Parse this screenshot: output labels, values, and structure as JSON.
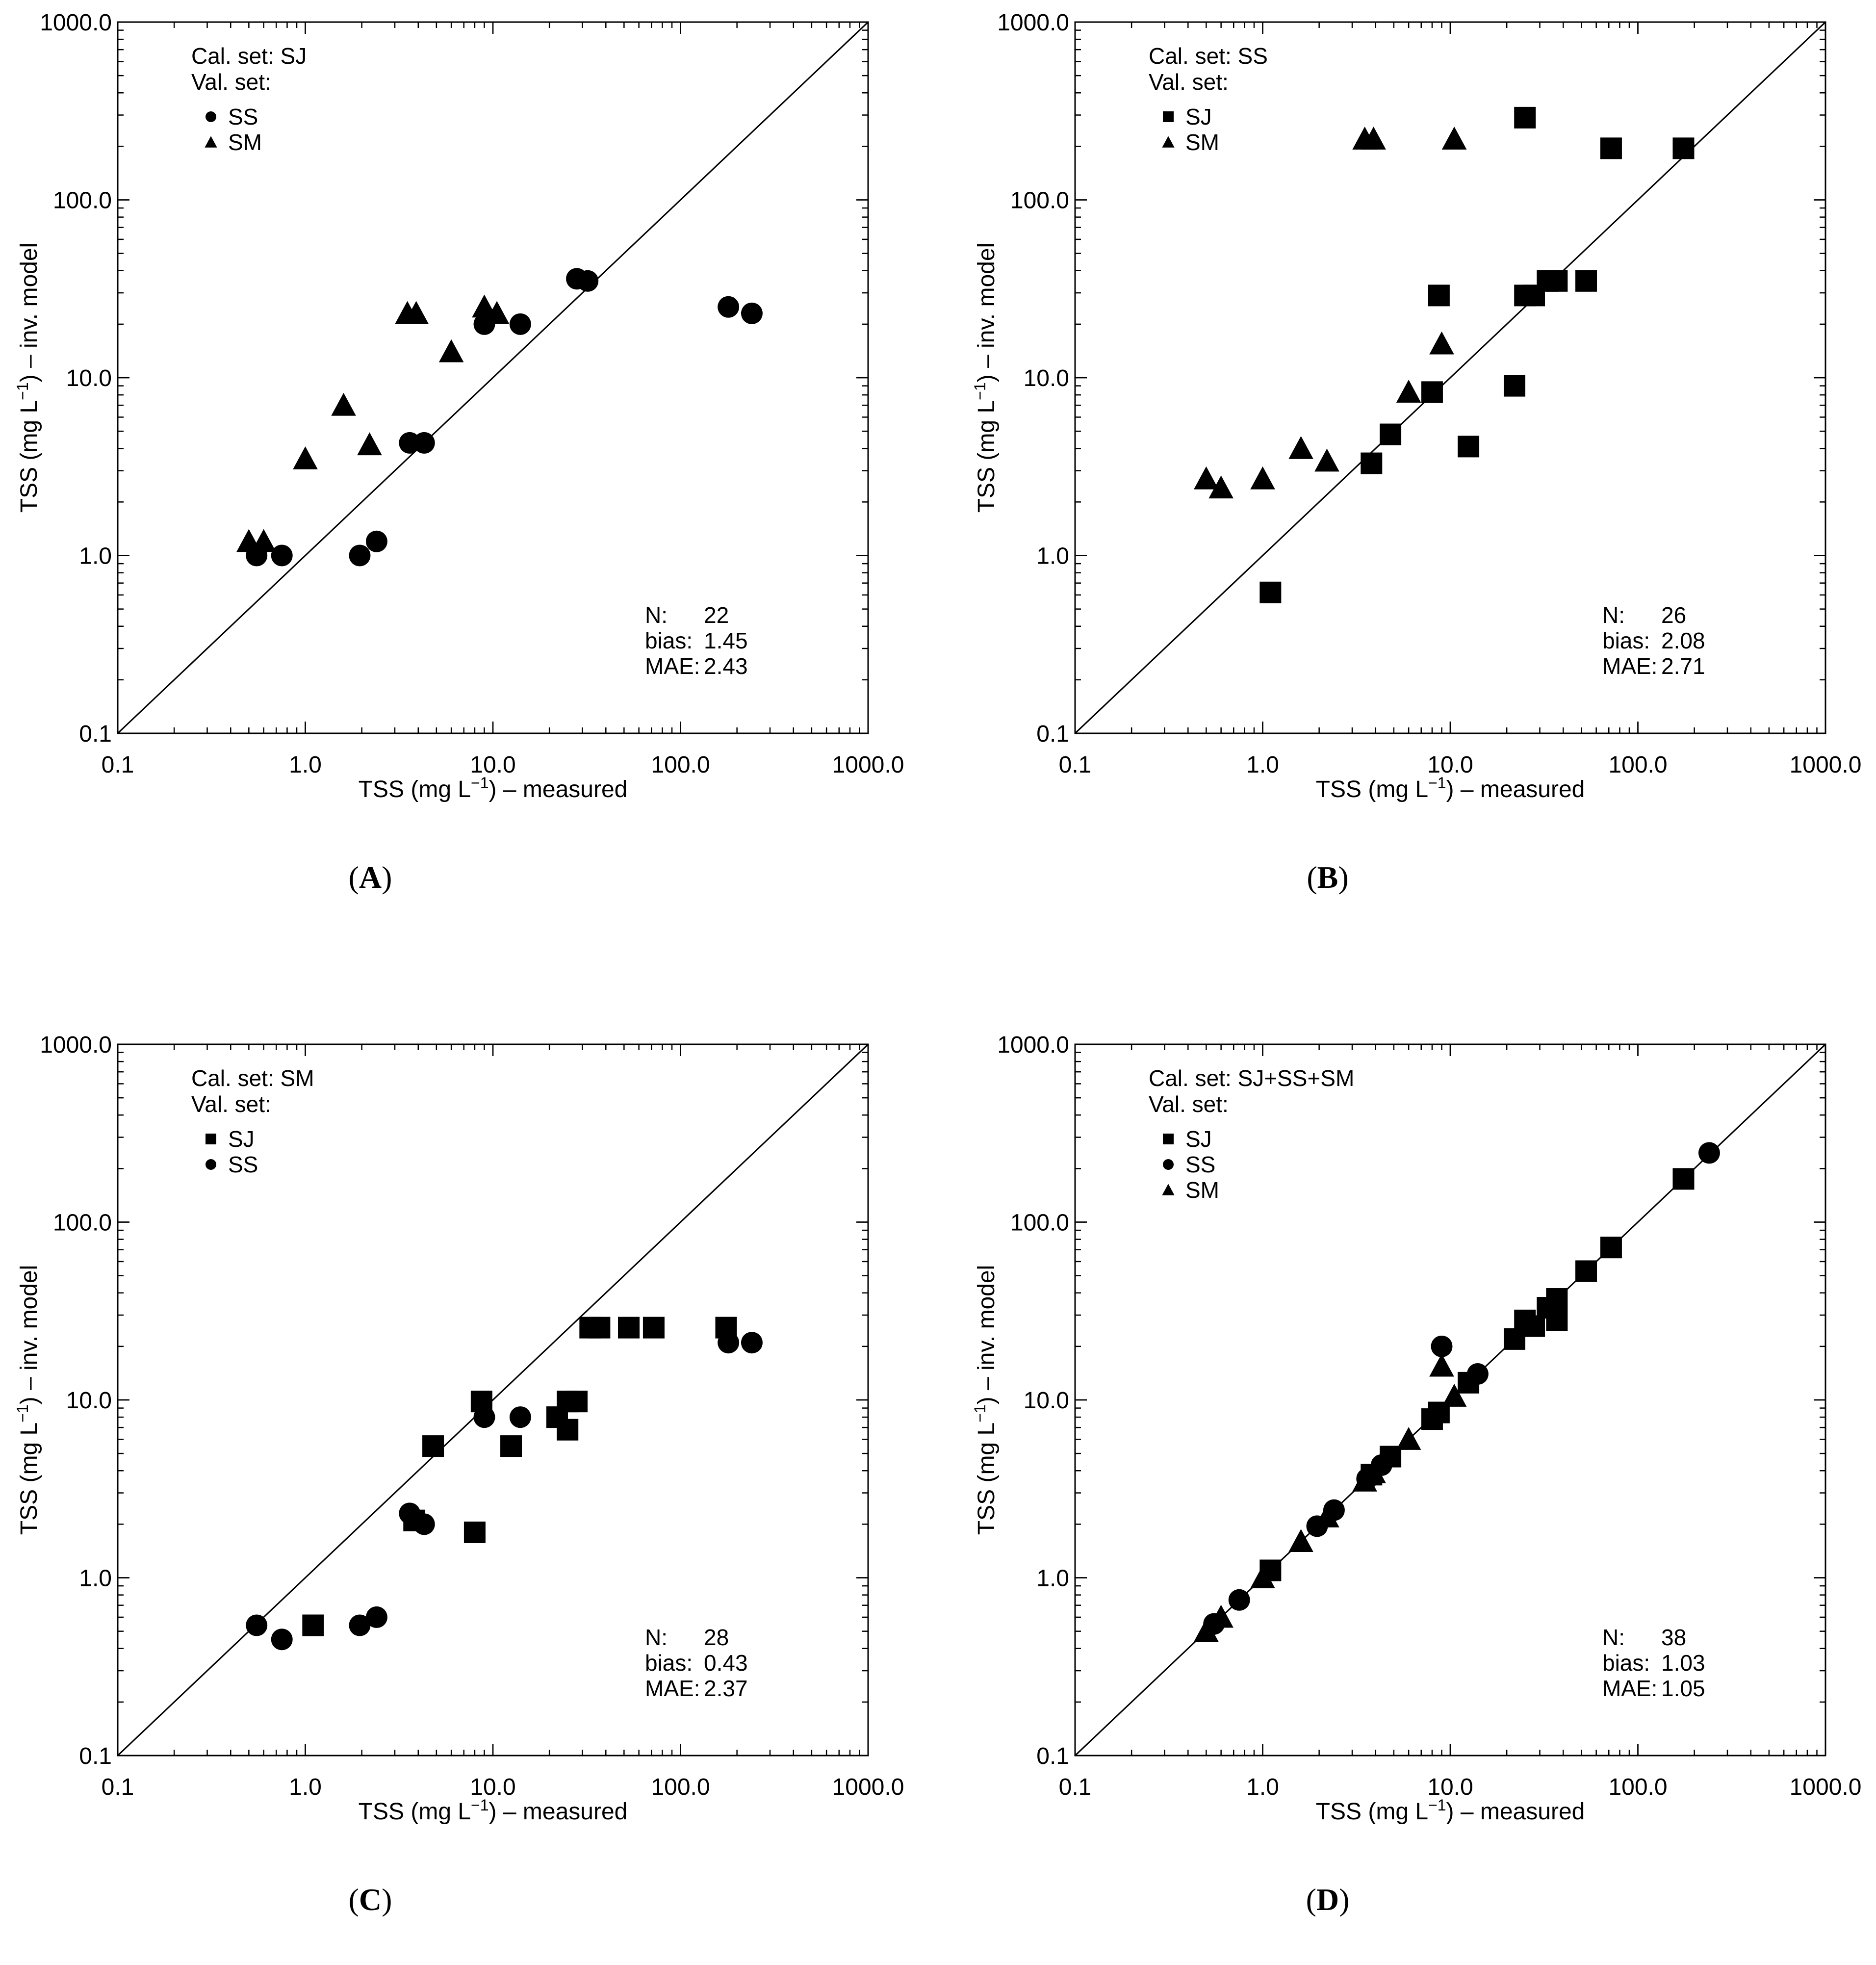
{
  "chart_data": [
    {
      "type": "scatter",
      "panel_label": "A",
      "xscale": "log",
      "yscale": "log",
      "xlim": [
        0.1,
        1000
      ],
      "ylim": [
        0.1,
        1000
      ],
      "x_ticks": [
        "0.1",
        "1.0",
        "10.0",
        "100.0",
        "1000.0"
      ],
      "y_ticks": [
        "0.1",
        "1.0",
        "10.0",
        "100.0",
        "1000.0"
      ],
      "xlabel": {
        "pre": "TSS (mg L",
        "sup": "−1",
        "post": ") – measured"
      },
      "ylabel": {
        "pre": "TSS (mg L",
        "sup": "−1",
        "post": ") – inv. model"
      },
      "reference_line": "1:1",
      "cal_text": "Cal. set: SJ",
      "val_text": "Val. set:",
      "legend": [
        {
          "marker": "circle",
          "label": "SS"
        },
        {
          "marker": "triangle",
          "label": "SM"
        }
      ],
      "series": [
        {
          "name": "SS",
          "marker": "circle",
          "points": [
            [
              0.55,
              1.0
            ],
            [
              0.75,
              1.0
            ],
            [
              1.95,
              1.0
            ],
            [
              2.4,
              1.2
            ],
            [
              3.6,
              4.3
            ],
            [
              4.3,
              4.3
            ],
            [
              9.0,
              20.0
            ],
            [
              14.0,
              20.0
            ],
            [
              28.0,
              36.0
            ],
            [
              32.0,
              35.0
            ],
            [
              180.0,
              25.0
            ],
            [
              240.0,
              23.0
            ]
          ]
        },
        {
          "name": "SM",
          "marker": "triangle",
          "points": [
            [
              0.5,
              1.2
            ],
            [
              0.6,
              1.2
            ],
            [
              1.0,
              3.5
            ],
            [
              1.6,
              7.0
            ],
            [
              2.2,
              4.2
            ],
            [
              3.5,
              23.0
            ],
            [
              3.9,
              23.0
            ],
            [
              6.0,
              14.0
            ],
            [
              9.0,
              25.0
            ],
            [
              10.5,
              23.0
            ]
          ]
        }
      ],
      "stats": {
        "n_label": "N:",
        "n": "22",
        "bias_label": "bias:",
        "bias": "1.45",
        "mae_label": "MAE:",
        "mae": "2.43"
      }
    },
    {
      "type": "scatter",
      "panel_label": "B",
      "xscale": "log",
      "yscale": "log",
      "xlim": [
        0.1,
        1000
      ],
      "ylim": [
        0.1,
        1000
      ],
      "x_ticks": [
        "0.1",
        "1.0",
        "10.0",
        "100.0",
        "1000.0"
      ],
      "y_ticks": [
        "0.1",
        "1.0",
        "10.0",
        "100.0",
        "1000.0"
      ],
      "xlabel": {
        "pre": "TSS (mg L",
        "sup": "−1",
        "post": ") – measured"
      },
      "ylabel": {
        "pre": "TSS (mg L",
        "sup": "−1",
        "post": ") – inv. model"
      },
      "reference_line": "1:1",
      "cal_text": "Cal. set: SS",
      "val_text": "Val. set:",
      "legend": [
        {
          "marker": "square",
          "label": "SJ"
        },
        {
          "marker": "triangle",
          "label": "SM"
        }
      ],
      "series": [
        {
          "name": "SJ",
          "marker": "square",
          "points": [
            [
              1.1,
              0.62
            ],
            [
              3.8,
              3.3
            ],
            [
              4.8,
              4.8
            ],
            [
              8.0,
              8.3
            ],
            [
              8.7,
              29.0
            ],
            [
              12.5,
              4.1
            ],
            [
              22.0,
              9.0
            ],
            [
              25.0,
              290.0
            ],
            [
              25.0,
              29.0
            ],
            [
              28.0,
              29.0
            ],
            [
              33.0,
              35.0
            ],
            [
              37.0,
              35.0
            ],
            [
              53.0,
              35.0
            ],
            [
              72.0,
              195.0
            ],
            [
              175.0,
              195.0
            ]
          ]
        },
        {
          "name": "SM",
          "marker": "triangle",
          "points": [
            [
              0.5,
              2.7
            ],
            [
              0.6,
              2.4
            ],
            [
              1.0,
              2.7
            ],
            [
              1.6,
              4.0
            ],
            [
              2.2,
              3.4
            ],
            [
              3.5,
              220.0
            ],
            [
              3.9,
              220.0
            ],
            [
              6.0,
              8.3
            ],
            [
              9.0,
              15.5
            ],
            [
              10.5,
              220.0
            ]
          ]
        }
      ],
      "stats": {
        "n_label": "N:",
        "n": "26",
        "bias_label": "bias:",
        "bias": "2.08",
        "mae_label": "MAE:",
        "mae": "2.71"
      }
    },
    {
      "type": "scatter",
      "panel_label": "C",
      "xscale": "log",
      "yscale": "log",
      "xlim": [
        0.1,
        1000
      ],
      "ylim": [
        0.1,
        1000
      ],
      "x_ticks": [
        "0.1",
        "1.0",
        "10.0",
        "100.0",
        "1000.0"
      ],
      "y_ticks": [
        "0.1",
        "1.0",
        "10.0",
        "100.0",
        "1000.0"
      ],
      "xlabel": {
        "pre": "TSS (mg L",
        "sup": "−1",
        "post": ") – measured"
      },
      "ylabel": {
        "pre": "TSS (mg L",
        "sup": "−1",
        "post": ") – inv. model"
      },
      "reference_line": "1:1",
      "cal_text": "Cal. set: SM",
      "val_text": "Val. set:",
      "legend": [
        {
          "marker": "square",
          "label": "SJ"
        },
        {
          "marker": "circle",
          "label": "SS"
        }
      ],
      "series": [
        {
          "name": "SJ",
          "marker": "square",
          "points": [
            [
              1.1,
              0.54
            ],
            [
              3.8,
              2.1
            ],
            [
              4.8,
              5.5
            ],
            [
              8.0,
              1.8
            ],
            [
              8.7,
              9.8
            ],
            [
              12.5,
              5.5
            ],
            [
              22.0,
              8.0
            ],
            [
              25.0,
              6.8
            ],
            [
              25.0,
              9.8
            ],
            [
              28.0,
              9.8
            ],
            [
              33.0,
              25.5
            ],
            [
              37.0,
              25.5
            ],
            [
              53.0,
              25.5
            ],
            [
              72.0,
              25.5
            ],
            [
              175.0,
              25.5
            ]
          ]
        },
        {
          "name": "SS",
          "marker": "circle",
          "points": [
            [
              0.55,
              0.54
            ],
            [
              0.75,
              0.45
            ],
            [
              1.95,
              0.54
            ],
            [
              2.4,
              0.6
            ],
            [
              3.6,
              2.3
            ],
            [
              4.3,
              2.0
            ],
            [
              9.0,
              8.0
            ],
            [
              14.0,
              8.0
            ],
            [
              180.0,
              21.0
            ],
            [
              240.0,
              21.0
            ]
          ]
        }
      ],
      "stats": {
        "n_label": "N:",
        "n": "28",
        "bias_label": "bias:",
        "bias": "0.43",
        "mae_label": "MAE:",
        "mae": "2.37"
      }
    },
    {
      "type": "scatter",
      "panel_label": "D",
      "xscale": "log",
      "yscale": "log",
      "xlim": [
        0.1,
        1000
      ],
      "ylim": [
        0.1,
        1000
      ],
      "x_ticks": [
        "0.1",
        "1.0",
        "10.0",
        "100.0",
        "1000.0"
      ],
      "y_ticks": [
        "0.1",
        "1.0",
        "10.0",
        "100.0",
        "1000.0"
      ],
      "xlabel": {
        "pre": "TSS (mg L",
        "sup": "−1",
        "post": ") – measured"
      },
      "ylabel": {
        "pre": "TSS (mg L",
        "sup": "−1",
        "post": ") – inv. model"
      },
      "reference_line": "1:1",
      "cal_text": "Cal. set: SJ+SS+SM",
      "val_text": "Val. set:",
      "legend": [
        {
          "marker": "square",
          "label": "SJ"
        },
        {
          "marker": "circle",
          "label": "SS"
        },
        {
          "marker": "triangle",
          "label": "SM"
        }
      ],
      "series": [
        {
          "name": "SJ",
          "marker": "square",
          "points": [
            [
              1.1,
              1.1
            ],
            [
              3.8,
              3.8
            ],
            [
              4.8,
              4.8
            ],
            [
              8.0,
              7.8
            ],
            [
              8.7,
              8.5
            ],
            [
              12.5,
              12.5
            ],
            [
              22.0,
              22.0
            ],
            [
              25.0,
              28.0
            ],
            [
              28.0,
              26.0
            ],
            [
              33.0,
              33.0
            ],
            [
              37.0,
              28.0
            ],
            [
              37.0,
              37.0
            ],
            [
              53.0,
              53.0
            ],
            [
              72.0,
              72.0
            ],
            [
              175.0,
              175.0
            ]
          ]
        },
        {
          "name": "SS",
          "marker": "circle",
          "points": [
            [
              0.55,
              0.55
            ],
            [
              0.75,
              0.75
            ],
            [
              1.95,
              1.95
            ],
            [
              2.4,
              2.4
            ],
            [
              3.6,
              3.6
            ],
            [
              4.3,
              4.3
            ],
            [
              9.0,
              20.0
            ],
            [
              14.0,
              14.0
            ],
            [
              240.0,
              245.0
            ]
          ]
        },
        {
          "name": "SM",
          "marker": "triangle",
          "points": [
            [
              0.5,
              0.5
            ],
            [
              0.6,
              0.6
            ],
            [
              1.0,
              1.0
            ],
            [
              1.6,
              1.6
            ],
            [
              2.2,
              2.2
            ],
            [
              3.5,
              3.5
            ],
            [
              3.9,
              3.9
            ],
            [
              6.0,
              6.0
            ],
            [
              9.0,
              15.5
            ],
            [
              10.5,
              10.5
            ]
          ]
        }
      ],
      "stats": {
        "n_label": "N:",
        "n": "38",
        "bias_label": "bias:",
        "bias": "1.03",
        "mae_label": "MAE:",
        "mae": "1.05"
      }
    }
  ]
}
